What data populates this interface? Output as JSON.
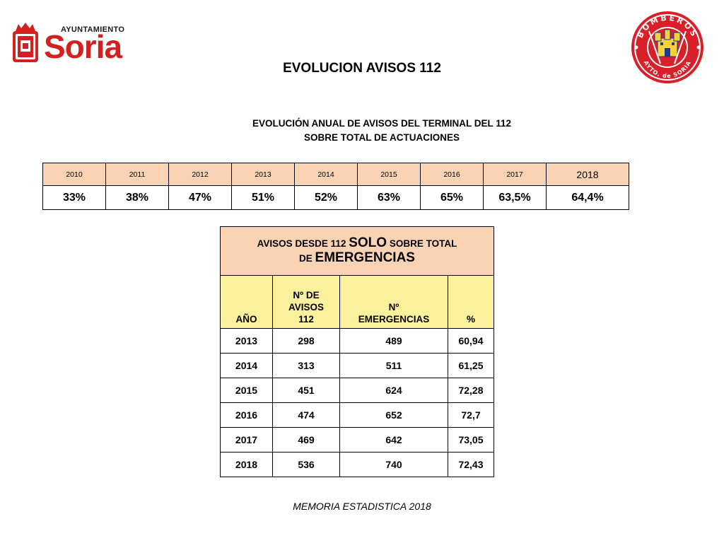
{
  "header": {
    "soria_logo": {
      "ayuntamiento": "AYUNTAMIENTO",
      "name": "Soria"
    },
    "bomberos_seal": {
      "top_text": "BOMBEROS",
      "bottom_text": "AYTO. de SORIA"
    },
    "title": "EVOLUCION AVISOS 112"
  },
  "annual": {
    "subtitle_line1": "EVOLUCIÓN ANUAL DE AVISOS DEL TERMINAL DEL 112",
    "subtitle_line2": "SOBRE TOTAL DE ACTUACIONES",
    "years": [
      "2010",
      "2011",
      "2012",
      "2013",
      "2014",
      "2015",
      "2016",
      "2017",
      "2018"
    ],
    "values": [
      "33%",
      "38%",
      "47%",
      "51%",
      "52%",
      "63%",
      "65%",
      "63,5%",
      "64,4%"
    ]
  },
  "emergencias": {
    "title_part1": "AVISOS DESDE 112 ",
    "title_part2": "SOLO",
    "title_part3": " SOBRE TOTAL",
    "title_part4": "DE ",
    "title_part5": "EMERGENCIAS",
    "columns": {
      "year": "AÑO",
      "avisos_l1": "Nº DE",
      "avisos_l2": "AVISOS",
      "avisos_l3": "112",
      "emerg_l1": "Nº",
      "emerg_l2": "EMERGENCIAS",
      "pct": "%"
    },
    "rows": [
      [
        "2013",
        "298",
        "489",
        "60,94"
      ],
      [
        "2014",
        "313",
        "511",
        "61,25"
      ],
      [
        "2015",
        "451",
        "624",
        "72,28"
      ],
      [
        "2016",
        "474",
        "652",
        "72,7"
      ],
      [
        "2017",
        "469",
        "642",
        "73,05"
      ],
      [
        "2018",
        "536",
        "740",
        "72,43"
      ]
    ]
  },
  "footer": "MEMORIA ESTADISTICA 2018",
  "colors": {
    "header_orange": "#fad3b4",
    "header_yellow": "#fbf19c",
    "soria_red": "#d42020",
    "bomberos_red": "#d9202a"
  }
}
